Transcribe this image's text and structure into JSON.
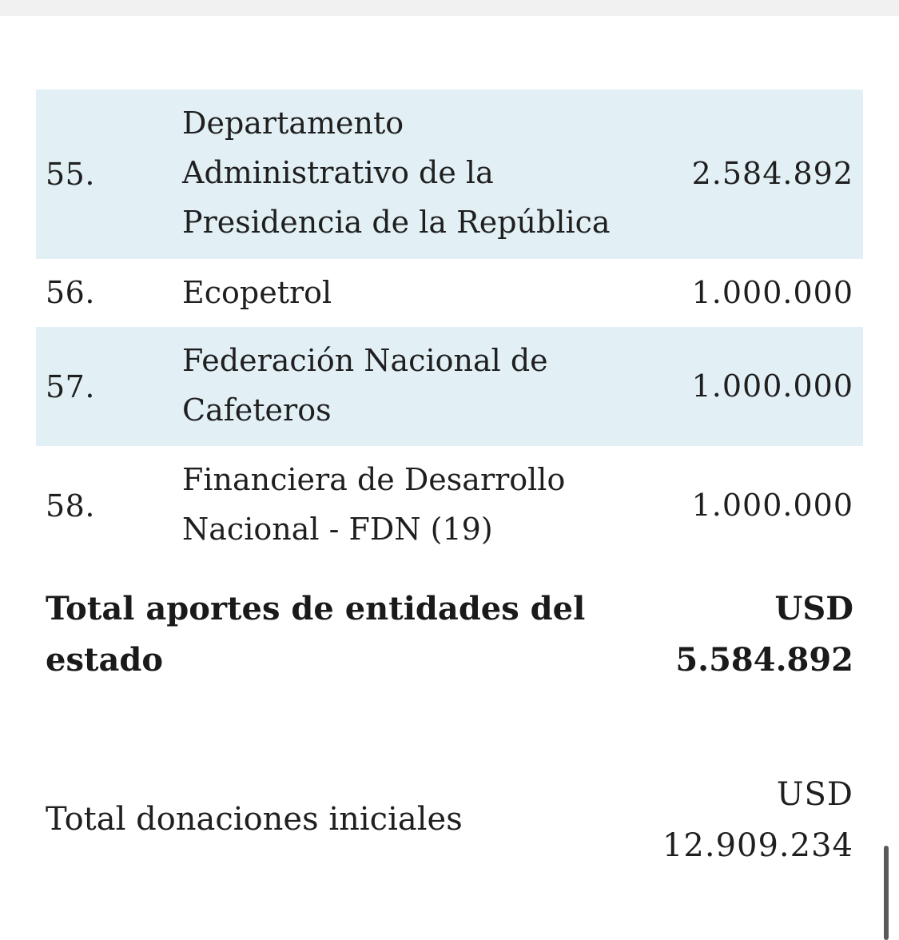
{
  "rows": [
    {
      "num": "55.",
      "name_lines": [
        "Departamento",
        "Administrativo de la",
        "Presidencia de la República"
      ],
      "amount": "2.584.892"
    },
    {
      "num": "56.",
      "name_lines": [
        "Ecopetrol"
      ],
      "amount": "1.000.000"
    },
    {
      "num": "57.",
      "name_lines": [
        "Federación Nacional de",
        "Cafeteros"
      ],
      "amount": "1.000.000"
    },
    {
      "num": "58.",
      "name_lines": [
        "Financiera de Desarrollo",
        "Nacional - FDN (19)"
      ],
      "amount": "1.000.000"
    }
  ],
  "total_state": {
    "label_lines": [
      "Total aportes de entidades del",
      "estado"
    ],
    "value_lines": [
      "USD",
      "5.584.892"
    ]
  },
  "total_initial": {
    "label": "Total donaciones iniciales",
    "value_lines": [
      "USD",
      "12.909.234"
    ]
  },
  "colors": {
    "row_shade": "#e2f0f6",
    "text": "#1f1f1f"
  }
}
